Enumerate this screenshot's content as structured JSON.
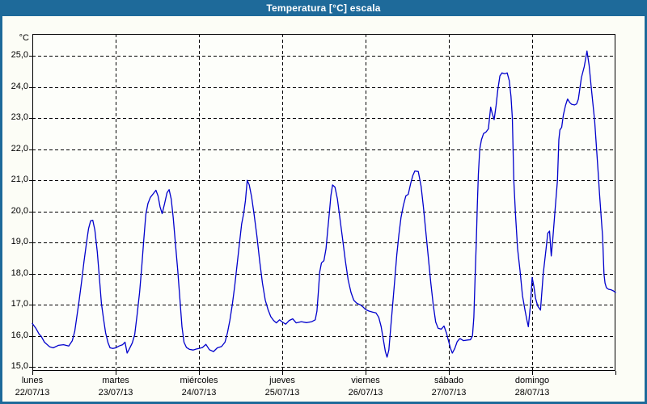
{
  "window": {
    "title": "Temperatura [°C] escala"
  },
  "colors": {
    "frame": "#1e6a9a",
    "title_text": "#ffffff",
    "content_bg": "#fcfdf6",
    "plot_bg": "#fdfefa",
    "grid": "#000000",
    "axis": "#000000",
    "line": "#0000cc"
  },
  "chart_data": {
    "type": "line",
    "title": "Temperatura [°C] escala",
    "grid": "dashed",
    "legend": "none",
    "y_axis": {
      "unit_label": "°C",
      "min": 15.0,
      "max": 25.0,
      "step": 1.0,
      "decimal_separator": ",",
      "tick_labels": [
        "25,0",
        "24,0",
        "23,0",
        "22,0",
        "21,0",
        "20,0",
        "19,0",
        "18,0",
        "17,0",
        "16,0",
        "15,0"
      ]
    },
    "x_axis": {
      "days": [
        {
          "name": "lunes",
          "date": "22/07/13"
        },
        {
          "name": "martes",
          "date": "23/07/13"
        },
        {
          "name": "miércoles",
          "date": "24/07/13"
        },
        {
          "name": "jueves",
          "date": "25/07/13"
        },
        {
          "name": "viernes",
          "date": "26/07/13"
        },
        {
          "name": "sábado",
          "date": "27/07/13"
        },
        {
          "name": "domingo",
          "date": "28/07/13"
        }
      ],
      "hours_per_day": 24,
      "total_hours": 168
    },
    "series": [
      {
        "name": "Temperatura [°C]",
        "color": "#0000cc",
        "x_unit": "hours_from_2013-07-22_00:00",
        "points": [
          [
            0,
            16.4
          ],
          [
            1,
            16.25
          ],
          [
            2,
            16.05
          ],
          [
            2.5,
            16.0
          ],
          [
            3.5,
            15.8
          ],
          [
            5,
            15.65
          ],
          [
            6,
            15.62
          ],
          [
            7.5,
            15.7
          ],
          [
            9,
            15.72
          ],
          [
            10.5,
            15.68
          ],
          [
            11.5,
            15.85
          ],
          [
            12.2,
            16.15
          ],
          [
            12.8,
            16.6
          ],
          [
            13.5,
            17.15
          ],
          [
            14.2,
            17.75
          ],
          [
            14.9,
            18.4
          ],
          [
            15.6,
            19.0
          ],
          [
            16.2,
            19.45
          ],
          [
            16.8,
            19.7
          ],
          [
            17.4,
            19.72
          ],
          [
            18,
            19.4
          ],
          [
            18.7,
            18.7
          ],
          [
            19.3,
            17.9
          ],
          [
            19.9,
            17.05
          ],
          [
            20.5,
            16.55
          ],
          [
            21.1,
            16.1
          ],
          [
            21.8,
            15.78
          ],
          [
            22.4,
            15.62
          ],
          [
            23.2,
            15.6
          ],
          [
            24,
            15.62
          ],
          [
            25,
            15.68
          ],
          [
            26,
            15.72
          ],
          [
            26.7,
            15.8
          ],
          [
            27.3,
            15.45
          ],
          [
            28,
            15.6
          ],
          [
            28.8,
            15.78
          ],
          [
            29.5,
            16.05
          ],
          [
            30.2,
            16.7
          ],
          [
            30.9,
            17.4
          ],
          [
            31.5,
            18.2
          ],
          [
            32.1,
            19.1
          ],
          [
            32.7,
            19.9
          ],
          [
            33.3,
            20.25
          ],
          [
            34,
            20.45
          ],
          [
            34.7,
            20.55
          ],
          [
            35.6,
            20.68
          ],
          [
            36.2,
            20.5
          ],
          [
            36.8,
            20.15
          ],
          [
            37.4,
            19.93
          ],
          [
            38.1,
            20.25
          ],
          [
            38.8,
            20.6
          ],
          [
            39.4,
            20.7
          ],
          [
            40,
            20.4
          ],
          [
            40.6,
            19.8
          ],
          [
            41.2,
            19.0
          ],
          [
            41.9,
            18.1
          ],
          [
            42.5,
            17.2
          ],
          [
            43.1,
            16.3
          ],
          [
            43.7,
            15.8
          ],
          [
            44.4,
            15.63
          ],
          [
            45.3,
            15.57
          ],
          [
            46.3,
            15.55
          ],
          [
            47.2,
            15.58
          ],
          [
            48,
            15.6
          ],
          [
            49,
            15.63
          ],
          [
            50,
            15.73
          ],
          [
            51,
            15.56
          ],
          [
            52.2,
            15.5
          ],
          [
            53.3,
            15.62
          ],
          [
            54.5,
            15.66
          ],
          [
            55.5,
            15.8
          ],
          [
            56.2,
            16.1
          ],
          [
            56.9,
            16.5
          ],
          [
            57.6,
            17.0
          ],
          [
            58.3,
            17.6
          ],
          [
            59,
            18.3
          ],
          [
            59.7,
            19.0
          ],
          [
            60.3,
            19.6
          ],
          [
            60.9,
            19.95
          ],
          [
            61.4,
            20.35
          ],
          [
            61.9,
            21.0
          ],
          [
            62.5,
            20.85
          ],
          [
            63.2,
            20.45
          ],
          [
            63.9,
            19.9
          ],
          [
            64.7,
            19.2
          ],
          [
            65.5,
            18.4
          ],
          [
            66.3,
            17.7
          ],
          [
            67.1,
            17.15
          ],
          [
            67.9,
            16.85
          ],
          [
            68.7,
            16.62
          ],
          [
            69.5,
            16.5
          ],
          [
            70.3,
            16.42
          ],
          [
            71.2,
            16.52
          ],
          [
            72,
            16.45
          ],
          [
            73,
            16.38
          ],
          [
            74,
            16.5
          ],
          [
            75,
            16.55
          ],
          [
            76,
            16.42
          ],
          [
            77.5,
            16.46
          ],
          [
            79,
            16.43
          ],
          [
            80.5,
            16.46
          ],
          [
            81.5,
            16.52
          ],
          [
            82,
            16.8
          ],
          [
            82.4,
            17.4
          ],
          [
            82.8,
            18.05
          ],
          [
            83.3,
            18.35
          ],
          [
            84,
            18.42
          ],
          [
            84.6,
            18.8
          ],
          [
            85.1,
            19.4
          ],
          [
            85.6,
            20.0
          ],
          [
            86,
            20.5
          ],
          [
            86.5,
            20.85
          ],
          [
            87.2,
            20.78
          ],
          [
            87.9,
            20.4
          ],
          [
            88.6,
            19.8
          ],
          [
            89.4,
            19.1
          ],
          [
            90.2,
            18.4
          ],
          [
            91,
            17.8
          ],
          [
            91.8,
            17.4
          ],
          [
            92.6,
            17.15
          ],
          [
            93.5,
            17.05
          ],
          [
            94.5,
            17.0
          ],
          [
            95.3,
            16.93
          ],
          [
            96,
            16.85
          ],
          [
            97,
            16.8
          ],
          [
            98,
            16.77
          ],
          [
            99,
            16.74
          ],
          [
            99.8,
            16.6
          ],
          [
            100.5,
            16.3
          ],
          [
            101.1,
            15.9
          ],
          [
            101.7,
            15.5
          ],
          [
            102.2,
            15.32
          ],
          [
            102.7,
            15.55
          ],
          [
            103.2,
            16.2
          ],
          [
            103.8,
            17.0
          ],
          [
            104.4,
            17.8
          ],
          [
            105,
            18.6
          ],
          [
            105.6,
            19.25
          ],
          [
            106.2,
            19.8
          ],
          [
            106.9,
            20.2
          ],
          [
            107.6,
            20.5
          ],
          [
            108.3,
            20.55
          ],
          [
            109,
            20.9
          ],
          [
            109.6,
            21.15
          ],
          [
            110.2,
            21.3
          ],
          [
            111.2,
            21.28
          ],
          [
            112,
            20.8
          ],
          [
            112.7,
            20.1
          ],
          [
            113.4,
            19.3
          ],
          [
            114.1,
            18.5
          ],
          [
            114.8,
            17.7
          ],
          [
            115.5,
            17.0
          ],
          [
            116.2,
            16.45
          ],
          [
            116.9,
            16.25
          ],
          [
            117.8,
            16.22
          ],
          [
            118.6,
            16.32
          ],
          [
            119.3,
            16.1
          ],
          [
            120,
            15.8
          ],
          [
            120.5,
            15.6
          ],
          [
            121,
            15.45
          ],
          [
            121.7,
            15.6
          ],
          [
            122.4,
            15.82
          ],
          [
            123.2,
            15.92
          ],
          [
            124.2,
            15.85
          ],
          [
            125.4,
            15.87
          ],
          [
            126.2,
            15.88
          ],
          [
            126.8,
            16.0
          ],
          [
            127.2,
            16.6
          ],
          [
            127.6,
            18.0
          ],
          [
            127.9,
            19.0
          ],
          [
            128.2,
            20.2
          ],
          [
            128.5,
            21.2
          ],
          [
            128.9,
            22.0
          ],
          [
            129.4,
            22.3
          ],
          [
            130,
            22.5
          ],
          [
            130.7,
            22.55
          ],
          [
            131.4,
            22.65
          ],
          [
            132.05,
            23.35
          ],
          [
            132.5,
            23.15
          ],
          [
            133.05,
            22.95
          ],
          [
            133.6,
            23.4
          ],
          [
            134.1,
            23.9
          ],
          [
            134.7,
            24.35
          ],
          [
            135.3,
            24.45
          ],
          [
            136.1,
            24.42
          ],
          [
            136.8,
            24.45
          ],
          [
            137.4,
            24.2
          ],
          [
            137.9,
            23.7
          ],
          [
            138.3,
            23.0
          ],
          [
            138.7,
            21.0
          ],
          [
            139.2,
            19.9
          ],
          [
            139.8,
            18.8
          ],
          [
            140.5,
            18.1
          ],
          [
            141.2,
            17.3
          ],
          [
            141.9,
            16.85
          ],
          [
            142.5,
            16.5
          ],
          [
            142.9,
            16.3
          ],
          [
            143.5,
            17.0
          ],
          [
            144,
            17.88
          ],
          [
            144.5,
            17.6
          ],
          [
            145,
            17.2
          ],
          [
            145.6,
            16.96
          ],
          [
            146.4,
            16.83
          ],
          [
            147.2,
            18.0
          ],
          [
            148,
            18.8
          ],
          [
            148.5,
            19.3
          ],
          [
            149,
            19.37
          ],
          [
            149.5,
            18.57
          ],
          [
            149.9,
            19.04
          ],
          [
            150.7,
            20.2
          ],
          [
            151.3,
            21.0
          ],
          [
            151.7,
            22.3
          ],
          [
            152,
            22.62
          ],
          [
            152.5,
            22.7
          ],
          [
            153,
            23.1
          ],
          [
            153.6,
            23.4
          ],
          [
            154.2,
            23.61
          ],
          [
            154.8,
            23.5
          ],
          [
            155.4,
            23.44
          ],
          [
            156.2,
            23.42
          ],
          [
            156.8,
            23.45
          ],
          [
            157.3,
            23.6
          ],
          [
            158.2,
            24.3
          ],
          [
            159,
            24.65
          ],
          [
            159.8,
            25.15
          ],
          [
            160.4,
            24.7
          ],
          [
            161,
            24.0
          ],
          [
            162,
            22.9
          ],
          [
            163,
            21.3
          ],
          [
            163.4,
            20.56
          ],
          [
            163.9,
            19.8
          ],
          [
            164.3,
            19.2
          ],
          [
            164.7,
            18.0
          ],
          [
            165,
            17.7
          ],
          [
            165.4,
            17.55
          ],
          [
            166,
            17.5
          ],
          [
            166.8,
            17.48
          ],
          [
            167.4,
            17.45
          ],
          [
            168,
            17.4
          ]
        ]
      }
    ]
  }
}
